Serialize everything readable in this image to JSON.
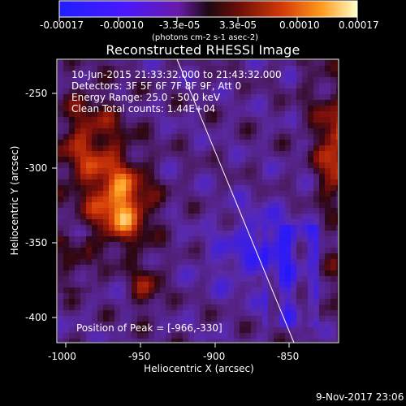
{
  "colorbar": {
    "ticks": [
      "-0.00017",
      "-0.00010",
      "-3.3e-05",
      "3.3e-05",
      "0.00010",
      "0.00017"
    ],
    "units_label": "(photons cm-2 s-1 asec-2)"
  },
  "plot": {
    "title": "Reconstructed RHESSI Image",
    "info_lines": [
      "10-Jun-2015 21:33:32.000 to 21:43:32.000",
      "Detectors: 3F 5F 6F 7F 8F 9F, Att 0",
      "Energy Range: 25.0 - 50.0 keV",
      "Clean     Total counts: 1.44E+04"
    ],
    "peak_label": "Position of Peak = [-966,-330]",
    "x_axis": {
      "label": "Heliocentric X (arcsec)",
      "ticks": [
        "-1000",
        "-950",
        "-900",
        "-850"
      ]
    },
    "y_axis": {
      "label": "Heliocentric Y (arcsec)",
      "ticks": [
        "-250",
        "-300",
        "-350",
        "-400"
      ]
    }
  },
  "footer": {
    "timestamp": "9-Nov-2017 23:06"
  }
}
